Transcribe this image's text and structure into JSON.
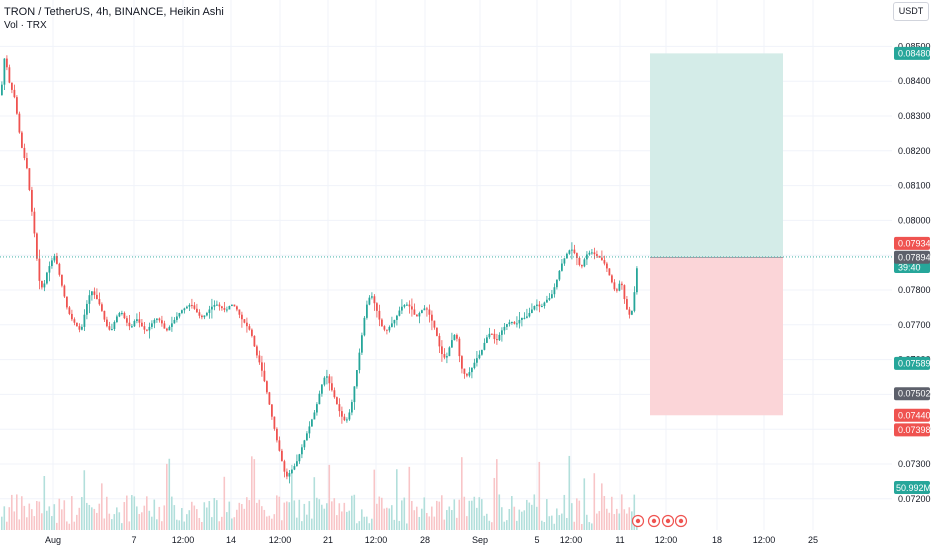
{
  "header": {
    "title": "TRON / TetherUS, 4h, BINANCE, Heikin Ashi",
    "volume_label": "Vol · TRX",
    "currency": "USDT"
  },
  "colors": {
    "up": "#26a69a",
    "down": "#ef5350",
    "profit_zone": "#d4ece8",
    "loss_zone": "#fbd5d8",
    "last_price_line": "#26a69a"
  },
  "chart_data": {
    "type": "candlestick",
    "symbol": "TRON / TetherUS",
    "interval": "4h",
    "exchange": "BINANCE",
    "style": "Heikin Ashi",
    "y_ticks": [
      0.072,
      0.073,
      0.074,
      0.075,
      0.076,
      0.077,
      0.078,
      0.079,
      0.08,
      0.081,
      0.082,
      0.083,
      0.084,
      0.085
    ],
    "y_tick_labels": [
      "0.07200",
      "0.07300",
      "0.07400",
      "0.07500",
      "0.07600",
      "0.07700",
      "0.07800",
      "0.07900",
      "0.08000",
      "0.08100",
      "0.08200",
      "0.08300",
      "0.08400",
      "0.08500"
    ],
    "x_ticks": [
      "Aug",
      "7",
      "12:00",
      "14",
      "12:00",
      "21",
      "12:00",
      "28",
      "Sep",
      "5",
      "12:00",
      "11",
      "12:00",
      "18",
      "12:00",
      "25"
    ],
    "close_path": [
      [
        0,
        0.0836
      ],
      [
        4,
        0.0848
      ],
      [
        8,
        0.084
      ],
      [
        14,
        0.0835
      ],
      [
        20,
        0.0822
      ],
      [
        26,
        0.0815
      ],
      [
        30,
        0.0805
      ],
      [
        34,
        0.0795
      ],
      [
        38,
        0.0783
      ],
      [
        42,
        0.078
      ],
      [
        46,
        0.0785
      ],
      [
        50,
        0.0788
      ],
      [
        54,
        0.079
      ],
      [
        58,
        0.0785
      ],
      [
        62,
        0.078
      ],
      [
        66,
        0.0775
      ],
      [
        70,
        0.0772
      ],
      [
        75,
        0.077
      ],
      [
        80,
        0.0768
      ],
      [
        85,
        0.0775
      ],
      [
        90,
        0.078
      ],
      [
        95,
        0.0778
      ],
      [
        100,
        0.0775
      ],
      [
        105,
        0.077
      ],
      [
        110,
        0.0768
      ],
      [
        115,
        0.0772
      ],
      [
        120,
        0.0774
      ],
      [
        125,
        0.0771
      ],
      [
        130,
        0.0769
      ],
      [
        135,
        0.0772
      ],
      [
        140,
        0.077
      ],
      [
        145,
        0.0768
      ],
      [
        150,
        0.077
      ],
      [
        155,
        0.0772
      ],
      [
        160,
        0.0771
      ],
      [
        165,
        0.0768
      ],
      [
        170,
        0.077
      ],
      [
        175,
        0.0772
      ],
      [
        180,
        0.0774
      ],
      [
        185,
        0.0775
      ],
      [
        190,
        0.0776
      ],
      [
        195,
        0.0774
      ],
      [
        200,
        0.0772
      ],
      [
        205,
        0.0773
      ],
      [
        210,
        0.0775
      ],
      [
        215,
        0.0776
      ],
      [
        220,
        0.0775
      ],
      [
        225,
        0.0774
      ],
      [
        230,
        0.0776
      ],
      [
        235,
        0.0775
      ],
      [
        240,
        0.0772
      ],
      [
        245,
        0.077
      ],
      [
        250,
        0.0768
      ],
      [
        255,
        0.0762
      ],
      [
        260,
        0.0758
      ],
      [
        265,
        0.0752
      ],
      [
        270,
        0.0745
      ],
      [
        275,
        0.0738
      ],
      [
        280,
        0.0732
      ],
      [
        285,
        0.0726
      ],
      [
        290,
        0.0728
      ],
      [
        295,
        0.073
      ],
      [
        300,
        0.0734
      ],
      [
        305,
        0.0738
      ],
      [
        310,
        0.0742
      ],
      [
        315,
        0.0746
      ],
      [
        320,
        0.0752
      ],
      [
        325,
        0.0756
      ],
      [
        330,
        0.0752
      ],
      [
        335,
        0.0748
      ],
      [
        340,
        0.0744
      ],
      [
        345,
        0.0742
      ],
      [
        350,
        0.0746
      ],
      [
        355,
        0.0755
      ],
      [
        360,
        0.0765
      ],
      [
        365,
        0.0775
      ],
      [
        370,
        0.0779
      ],
      [
        375,
        0.0775
      ],
      [
        380,
        0.077
      ],
      [
        385,
        0.0768
      ],
      [
        390,
        0.077
      ],
      [
        395,
        0.0772
      ],
      [
        400,
        0.0775
      ],
      [
        405,
        0.0776
      ],
      [
        410,
        0.0775
      ],
      [
        415,
        0.0772
      ],
      [
        420,
        0.0774
      ],
      [
        425,
        0.0775
      ],
      [
        430,
        0.0772
      ],
      [
        435,
        0.0768
      ],
      [
        440,
        0.0762
      ],
      [
        445,
        0.076
      ],
      [
        450,
        0.0765
      ],
      [
        455,
        0.0768
      ],
      [
        460,
        0.0758
      ],
      [
        465,
        0.0755
      ],
      [
        470,
        0.0757
      ],
      [
        475,
        0.076
      ],
      [
        480,
        0.0762
      ],
      [
        485,
        0.0766
      ],
      [
        490,
        0.0768
      ],
      [
        495,
        0.0765
      ],
      [
        500,
        0.0768
      ],
      [
        505,
        0.077
      ],
      [
        510,
        0.0771
      ],
      [
        515,
        0.077
      ],
      [
        520,
        0.0772
      ],
      [
        525,
        0.0772
      ],
      [
        530,
        0.0774
      ],
      [
        535,
        0.0776
      ],
      [
        540,
        0.0775
      ],
      [
        545,
        0.0777
      ],
      [
        550,
        0.0778
      ],
      [
        555,
        0.0782
      ],
      [
        560,
        0.0787
      ],
      [
        565,
        0.079
      ],
      [
        570,
        0.0792
      ],
      [
        575,
        0.079
      ],
      [
        580,
        0.0786
      ],
      [
        585,
        0.079
      ],
      [
        590,
        0.0791
      ],
      [
        595,
        0.079
      ],
      [
        600,
        0.0789
      ],
      [
        605,
        0.0787
      ],
      [
        610,
        0.0783
      ],
      [
        615,
        0.0779
      ],
      [
        620,
        0.0783
      ],
      [
        625,
        0.0775
      ],
      [
        630,
        0.0772
      ],
      [
        633,
        0.0778
      ],
      [
        637,
        0.0789
      ]
    ],
    "position": {
      "entry": 0.07894,
      "target": 0.0848,
      "stop": 0.0744
    },
    "price_tags": [
      {
        "value": 0.0848,
        "label": "0.08480",
        "color": "#26a69a"
      },
      {
        "value": 0.07934,
        "label": "0.07934",
        "color": "#ef5350"
      },
      {
        "value": 0.07895,
        "label": "0.07895",
        "sublabel": "39:40",
        "color": "#26a69a"
      },
      {
        "value": 0.07894,
        "label": "0.07894",
        "color": "#5d606b"
      },
      {
        "value": 0.07589,
        "label": "0.07589",
        "color": "#26a69a"
      },
      {
        "value": 0.07502,
        "label": "0.07502",
        "color": "#5d606b"
      },
      {
        "value": 0.0744,
        "label": "0.07440",
        "color": "#ef5350"
      },
      {
        "value": 0.07398,
        "label": "0.07398",
        "color": "#ef5350"
      }
    ],
    "volume_tag": {
      "label": "50.992M",
      "color": "#26a69a"
    }
  }
}
